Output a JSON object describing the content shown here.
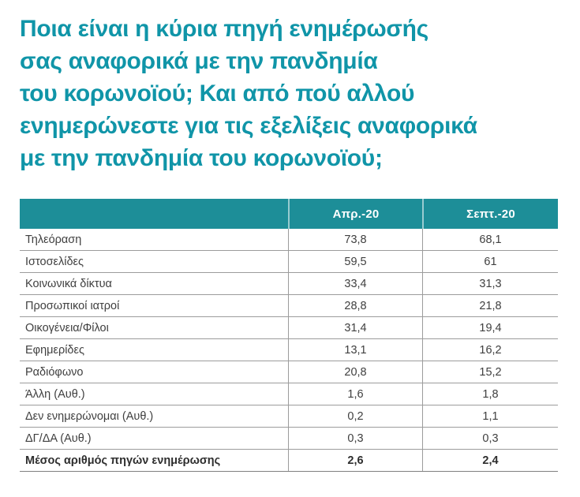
{
  "title": {
    "lines": [
      "Ποια είναι η κύρια πηγή ενημέρωσής",
      "σας αναφορικά με την πανδημία",
      "του κορωνοϊού; Και από πού αλλού",
      "ενημερώνεστε για τις εξελίξεις αναφορικά",
      "με την πανδημία του κορωνοϊού;"
    ],
    "full_text": "Ποια είναι η κύρια πηγή ενημέρωσής σας αναφορικά με την πανδημία του κορωνοϊού; Και από πού αλλού ενημερώνεστε για τις εξελίξεις αναφορικά με την πανδημία του κορωνοϊού;",
    "color": "#1095A8"
  },
  "table": {
    "columns": [
      "Απρ.-20",
      "Σεπτ.-20"
    ],
    "rows": [
      {
        "label": "Τηλεόραση",
        "apr": "73,8",
        "sept": "68,1"
      },
      {
        "label": "Ιστοσελίδες",
        "apr": "59,5",
        "sept": "61"
      },
      {
        "label": "Κοινωνικά δίκτυα",
        "apr": "33,4",
        "sept": "31,3"
      },
      {
        "label": "Προσωπικοί ιατροί",
        "apr": "28,8",
        "sept": "21,8"
      },
      {
        "label": "Οικογένεια/Φίλοι",
        "apr": "31,4",
        "sept": "19,4"
      },
      {
        "label": "Εφημερίδες",
        "apr": "13,1",
        "sept": "16,2"
      },
      {
        "label": "Ραδιόφωνο",
        "apr": "20,8",
        "sept": "15,2"
      },
      {
        "label": "Άλλη (Αυθ.)",
        "apr": "1,6",
        "sept": "1,8"
      },
      {
        "label": "Δεν ενημερώνομαι (Αυθ.)",
        "apr": "0,2",
        "sept": "1,1"
      },
      {
        "label": "ΔΓ/ΔΑ (Αυθ.)",
        "apr": "0,3",
        "sept": "0,3"
      },
      {
        "label": "Μέσος αριθμός πηγών ενημέρωσης",
        "apr": "2,6",
        "sept": "2,4"
      }
    ],
    "colors": {
      "header_bg": "#1D8E98",
      "header_text": "#ffffff",
      "row_text": "#404040",
      "separator": "#9C9C9C"
    }
  },
  "chart_data": {
    "type": "table",
    "title": "Ποια είναι η κύρια πηγή ενημέρωσής σας αναφορικά με την πανδημία του κορωνοϊού; Και από πού αλλού ενημερώνεστε για τις εξελίξεις αναφορικά με την πανδημία του κορωνοϊού;",
    "columns": [
      "",
      "Απρ.-20",
      "Σεπτ.-20"
    ],
    "series": [
      {
        "name": "Απρ.-20",
        "values": [
          73.8,
          59.5,
          33.4,
          28.8,
          31.4,
          13.1,
          20.8,
          1.6,
          0.2,
          0.3,
          2.6
        ]
      },
      {
        "name": "Σεπτ.-20",
        "values": [
          68.1,
          61,
          31.3,
          21.8,
          19.4,
          16.2,
          15.2,
          1.8,
          1.1,
          0.3,
          2.4
        ]
      }
    ],
    "categories": [
      "Τηλεόραση",
      "Ιστοσελίδες",
      "Κοινωνικά δίκτυα",
      "Προσωπικοί ιατροί",
      "Οικογένεια/Φίλοι",
      "Εφημερίδες",
      "Ραδιόφωνο",
      "Άλλη (Αυθ.)",
      "Δεν ενημερώνομαι (Αυθ.)",
      "ΔΓ/ΔΑ (Αυθ.)",
      "Μέσος αριθμός πηγών ενημέρωσης"
    ]
  }
}
